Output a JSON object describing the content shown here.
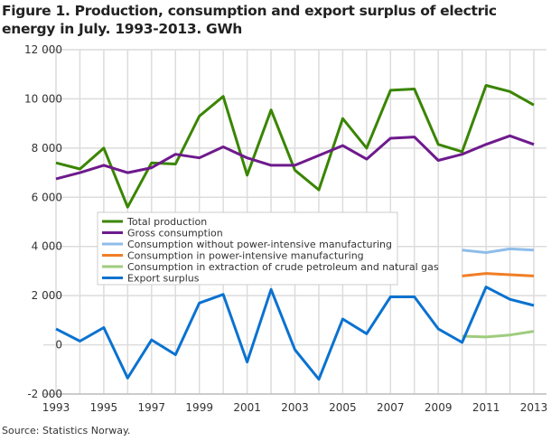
{
  "chart_data": {
    "type": "line",
    "title": "Figure 1. Production, consumption and export surplus of electric energy in July. 1993-2013. GWh",
    "source": "Source: Statistics Norway.",
    "xlabel": "",
    "ylabel": "",
    "ylim": [
      -2000,
      12000
    ],
    "yticks": [
      "-2 000",
      "0",
      "2 000",
      "4 000",
      "6 000",
      "8 000",
      "10 000",
      "12 000"
    ],
    "ytick_values": [
      -2000,
      0,
      2000,
      4000,
      6000,
      8000,
      10000,
      12000
    ],
    "xticks": [
      "1993",
      "1995",
      "1997",
      "1999",
      "2001",
      "2003",
      "2005",
      "2007",
      "2009",
      "2011",
      "2013"
    ],
    "x": [
      1993,
      1994,
      1995,
      1996,
      1997,
      1998,
      1999,
      2000,
      2001,
      2002,
      2003,
      2004,
      2005,
      2006,
      2007,
      2008,
      2009,
      2010,
      2011,
      2012,
      2013
    ],
    "grid": true,
    "legend_placement": "center-left",
    "series": [
      {
        "name": "Total production",
        "color": "#3a8500",
        "values": [
          7400,
          7150,
          8000,
          5600,
          7400,
          7350,
          9300,
          10100,
          6900,
          9550,
          7100,
          6300,
          9200,
          8000,
          10350,
          10400,
          8150,
          7850,
          10550,
          10300,
          9750
        ]
      },
      {
        "name": "Gross consumption",
        "color": "#6e1a8c",
        "values": [
          6750,
          7000,
          7300,
          7000,
          7200,
          7750,
          7600,
          8050,
          7600,
          7300,
          7300,
          7700,
          8100,
          7550,
          8400,
          8450,
          7500,
          7750,
          8150,
          8500,
          8150
        ]
      },
      {
        "name": "Consumption without power-intensive manufacturing",
        "color": "#8fbde8",
        "values": [
          null,
          null,
          null,
          null,
          null,
          null,
          null,
          null,
          null,
          null,
          null,
          null,
          null,
          null,
          null,
          null,
          null,
          3850,
          3750,
          3900,
          3850
        ]
      },
      {
        "name": "Consumption in power-intensive manufacturing",
        "color": "#f07e26",
        "values": [
          null,
          null,
          null,
          null,
          null,
          null,
          null,
          null,
          null,
          null,
          null,
          null,
          null,
          null,
          null,
          null,
          null,
          2800,
          2900,
          2850,
          2800
        ]
      },
      {
        "name": "Consumption in extraction of crude petroleum and natural gas",
        "color": "#9fcc7e",
        "values": [
          null,
          null,
          null,
          null,
          null,
          null,
          null,
          null,
          null,
          null,
          null,
          null,
          null,
          null,
          null,
          null,
          null,
          350,
          320,
          400,
          550
        ]
      },
      {
        "name": "Export surplus",
        "color": "#0a72d0",
        "values": [
          650,
          150,
          700,
          -1350,
          200,
          -400,
          1700,
          2050,
          -700,
          2250,
          -200,
          -1400,
          1050,
          450,
          1950,
          1950,
          650,
          100,
          2350,
          1850,
          1600
        ]
      }
    ]
  }
}
